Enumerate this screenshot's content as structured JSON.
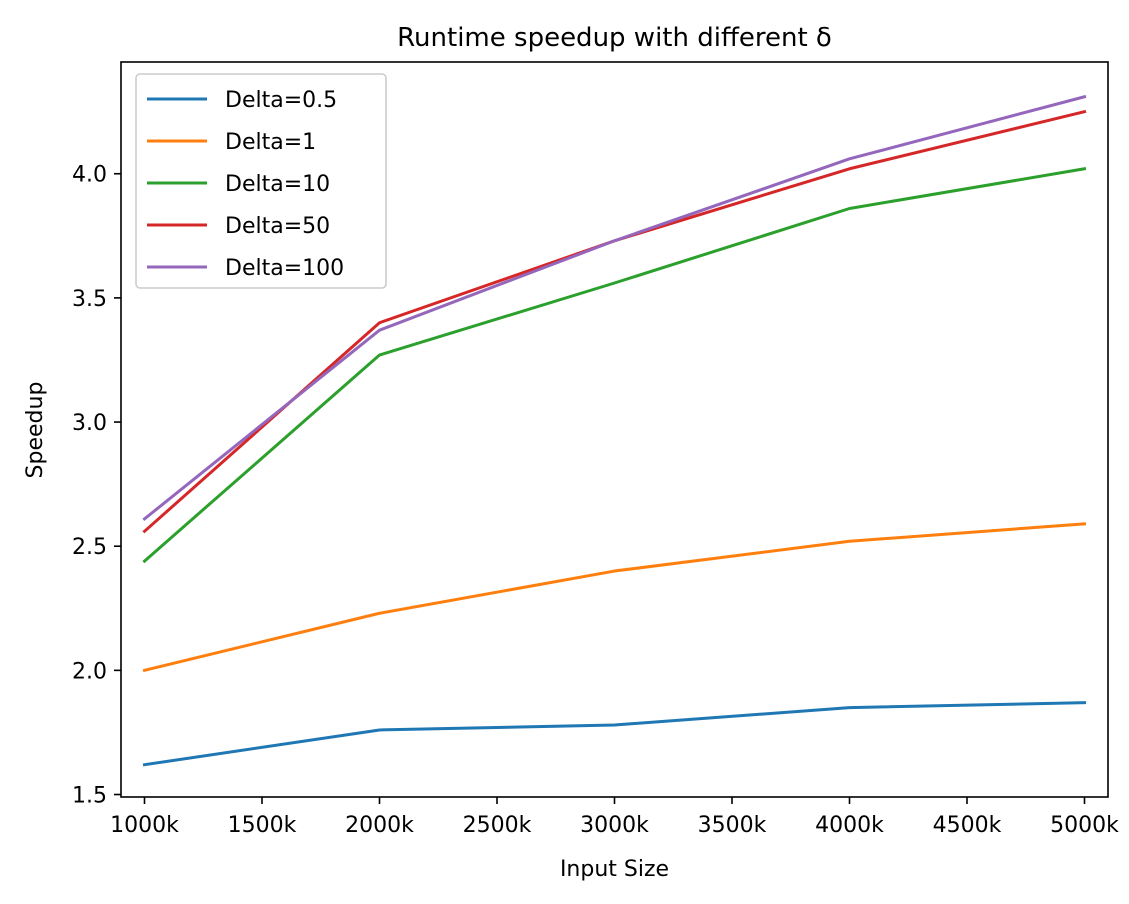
{
  "chart_data": {
    "type": "line",
    "title": "Runtime speedup with different δ",
    "xlabel": "Input Size",
    "ylabel": "Speedup",
    "x": [
      1000,
      2000,
      3000,
      4000,
      5000
    ],
    "xlim": [
      900,
      5100
    ],
    "ylim": [
      1.49,
      4.45
    ],
    "xticks": [
      1000,
      1500,
      2000,
      2500,
      3000,
      3500,
      4000,
      4500,
      5000
    ],
    "xtick_labels": [
      "1000k",
      "1500k",
      "2000k",
      "2500k",
      "3000k",
      "3500k",
      "4000k",
      "4500k",
      "5000k"
    ],
    "yticks": [
      1.5,
      2.0,
      2.5,
      3.0,
      3.5,
      4.0
    ],
    "ytick_labels": [
      "1.5",
      "2.0",
      "2.5",
      "3.0",
      "3.5",
      "4.0"
    ],
    "grid": false,
    "legend_position": "upper left",
    "series": [
      {
        "name": "Delta=0.5",
        "color": "#1f77b4",
        "values": [
          1.62,
          1.76,
          1.78,
          1.85,
          1.87
        ]
      },
      {
        "name": "Delta=1",
        "color": "#ff7f0e",
        "values": [
          2.0,
          2.23,
          2.4,
          2.52,
          2.59
        ]
      },
      {
        "name": "Delta=10",
        "color": "#2ca02c",
        "values": [
          2.44,
          3.27,
          3.56,
          3.86,
          4.02
        ]
      },
      {
        "name": "Delta=50",
        "color": "#d62728",
        "values": [
          2.56,
          3.4,
          3.73,
          4.02,
          4.25
        ]
      },
      {
        "name": "Delta=100",
        "color": "#9467bd",
        "values": [
          2.61,
          3.37,
          3.73,
          4.06,
          4.31
        ]
      }
    ]
  }
}
